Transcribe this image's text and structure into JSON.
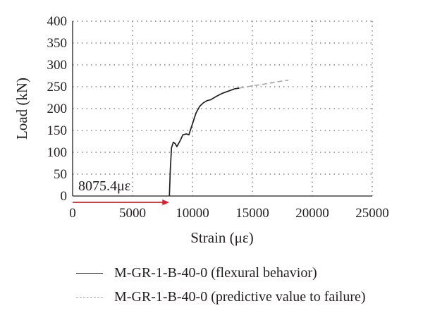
{
  "chart_data": {
    "type": "line",
    "xlabel": "Strain (με)",
    "ylabel": "Load (kN)",
    "xlim": [
      0,
      25000
    ],
    "ylim": [
      0,
      400
    ],
    "xticks": [
      0,
      5000,
      10000,
      15000,
      20000,
      25000
    ],
    "yticks": [
      0,
      50,
      100,
      150,
      200,
      250,
      300,
      350,
      400
    ],
    "grid": "dotted",
    "series": [
      {
        "name": "M-GR-1-B-40-0 (flexural behavior)",
        "style": "solid",
        "color": "#231f20",
        "points": [
          [
            8075,
            0
          ],
          [
            8150,
            60
          ],
          [
            8250,
            110
          ],
          [
            8400,
            123
          ],
          [
            8550,
            120
          ],
          [
            8700,
            113
          ],
          [
            8800,
            118
          ],
          [
            9000,
            128
          ],
          [
            9200,
            140
          ],
          [
            9500,
            142
          ],
          [
            9700,
            140
          ],
          [
            10000,
            165
          ],
          [
            10300,
            190
          ],
          [
            10600,
            205
          ],
          [
            10900,
            213
          ],
          [
            11200,
            218
          ],
          [
            11500,
            220
          ],
          [
            12000,
            228
          ],
          [
            12500,
            235
          ],
          [
            13000,
            240
          ],
          [
            13500,
            245
          ],
          [
            13900,
            247
          ]
        ]
      },
      {
        "name": "M-GR-1-B-40-0 (predictive value to failure)",
        "style": "dashed",
        "color": "#a7a9ac",
        "points": [
          [
            13900,
            247
          ],
          [
            15000,
            252
          ],
          [
            16000,
            256
          ],
          [
            17000,
            261
          ],
          [
            18000,
            265
          ]
        ]
      }
    ],
    "annotation": {
      "text": "8075.4με",
      "arrow_from": 0,
      "arrow_to": 8075.4,
      "arrow_color": "#d2232a"
    }
  }
}
